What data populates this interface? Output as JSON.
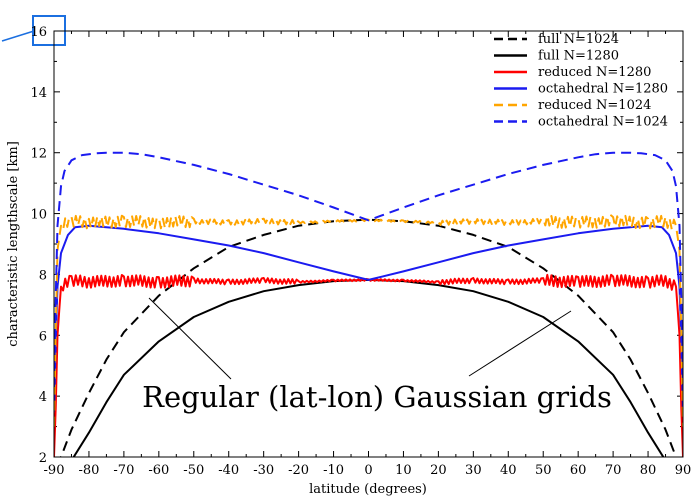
{
  "chart_data": {
    "type": "line",
    "xlabel": "latitude (degrees)",
    "ylabel": "characteristic lengthscale [km]",
    "xlim": [
      -90,
      90
    ],
    "ylim": [
      2,
      16
    ],
    "x_ticks": [
      -90,
      -80,
      -70,
      -60,
      -50,
      -40,
      -30,
      -20,
      -10,
      0,
      10,
      20,
      30,
      40,
      50,
      60,
      70,
      80,
      90
    ],
    "y_ticks": [
      2,
      4,
      6,
      8,
      10,
      12,
      14,
      16
    ],
    "legend_position": "top-right",
    "grid": false,
    "series": [
      {
        "name": "full N=1024",
        "color": "#000000",
        "dash": "dashed",
        "x": [
          -90,
          -88,
          -85,
          -80,
          -75,
          -70,
          -60,
          -50,
          -40,
          -30,
          -20,
          -10,
          0,
          10,
          20,
          30,
          40,
          50,
          60,
          70,
          75,
          80,
          85,
          88,
          90
        ],
        "y": [
          1.2,
          2.0,
          2.9,
          4.1,
          5.2,
          6.1,
          7.3,
          8.2,
          8.9,
          9.3,
          9.6,
          9.75,
          9.8,
          9.75,
          9.6,
          9.3,
          8.9,
          8.2,
          7.3,
          6.1,
          5.2,
          4.1,
          2.9,
          2.0,
          1.2
        ]
      },
      {
        "name": "full N=1280",
        "color": "#000000",
        "dash": "solid",
        "x": [
          -90,
          -86,
          -80,
          -75,
          -70,
          -60,
          -50,
          -40,
          -30,
          -20,
          -10,
          0,
          10,
          20,
          30,
          40,
          50,
          60,
          70,
          75,
          80,
          86,
          90
        ],
        "y": [
          0.6,
          1.7,
          2.8,
          3.8,
          4.7,
          5.8,
          6.6,
          7.1,
          7.45,
          7.65,
          7.78,
          7.82,
          7.78,
          7.65,
          7.45,
          7.1,
          6.6,
          5.8,
          4.7,
          3.8,
          2.8,
          1.7,
          0.6
        ]
      },
      {
        "name": "reduced N=1280",
        "color": "#ff0000",
        "dash": "solid",
        "x": [
          -90,
          -89.5,
          -89,
          -88,
          -85,
          -80,
          -70,
          -60,
          -50,
          -40,
          -30,
          -20,
          -10,
          0,
          10,
          20,
          30,
          40,
          50,
          60,
          70,
          80,
          85,
          88,
          89,
          89.5,
          90
        ],
        "y": [
          2.0,
          3.6,
          6.0,
          7.6,
          7.8,
          7.75,
          7.8,
          7.75,
          7.8,
          7.75,
          7.8,
          7.75,
          7.8,
          7.82,
          7.8,
          7.75,
          7.8,
          7.75,
          7.8,
          7.75,
          7.8,
          7.75,
          7.8,
          7.6,
          6.0,
          3.6,
          2.0
        ]
      },
      {
        "name": "octahedral N=1280",
        "color": "#1b1bf0",
        "dash": "solid",
        "x": [
          -90,
          -89.5,
          -89,
          -88,
          -86,
          -84,
          -80,
          -70,
          -60,
          -50,
          -40,
          -30,
          -20,
          -10,
          0,
          10,
          20,
          30,
          40,
          50,
          60,
          70,
          80,
          84,
          86,
          88,
          89,
          89.5,
          90
        ],
        "y": [
          3.5,
          5.8,
          7.6,
          8.7,
          9.3,
          9.55,
          9.6,
          9.5,
          9.35,
          9.15,
          8.95,
          8.7,
          8.4,
          8.1,
          7.82,
          8.1,
          8.4,
          8.7,
          8.95,
          9.15,
          9.35,
          9.5,
          9.6,
          9.55,
          9.3,
          8.7,
          7.6,
          5.8,
          3.5
        ]
      },
      {
        "name": "reduced N=1024",
        "color": "#ffa500",
        "dash": "dashed",
        "x": [
          -90,
          -89.5,
          -89,
          -88,
          -85,
          -80,
          -70,
          -60,
          -50,
          -40,
          -30,
          -20,
          -10,
          0,
          10,
          20,
          30,
          40,
          50,
          60,
          70,
          80,
          85,
          88,
          89,
          89.5,
          90
        ],
        "y": [
          3.0,
          6.0,
          8.8,
          9.6,
          9.75,
          9.7,
          9.75,
          9.7,
          9.75,
          9.7,
          9.75,
          9.7,
          9.75,
          9.78,
          9.75,
          9.7,
          9.75,
          9.7,
          9.75,
          9.7,
          9.75,
          9.7,
          9.75,
          9.6,
          8.8,
          6.0,
          3.0
        ]
      },
      {
        "name": "octahedral N=1024",
        "color": "#1b1bf0",
        "dash": "dashed",
        "x": [
          -90,
          -89.5,
          -89,
          -88,
          -87,
          -85,
          -82,
          -78,
          -75,
          -70,
          -65,
          -60,
          -50,
          -40,
          -30,
          -20,
          -10,
          0,
          10,
          20,
          30,
          40,
          50,
          60,
          65,
          70,
          75,
          78,
          82,
          85,
          87,
          88,
          89,
          89.5,
          90
        ],
        "y": [
          4.3,
          7.2,
          9.6,
          10.9,
          11.4,
          11.75,
          11.92,
          11.98,
          12.0,
          12.0,
          11.95,
          11.85,
          11.6,
          11.3,
          10.95,
          10.6,
          10.2,
          9.78,
          10.2,
          10.6,
          10.95,
          11.3,
          11.6,
          11.85,
          11.95,
          12.0,
          12.0,
          11.98,
          11.92,
          11.75,
          11.4,
          10.9,
          9.6,
          7.2,
          4.3
        ]
      }
    ],
    "annotations": [
      {
        "text": "Regular (lat-lon) Gaussian grids"
      }
    ]
  }
}
